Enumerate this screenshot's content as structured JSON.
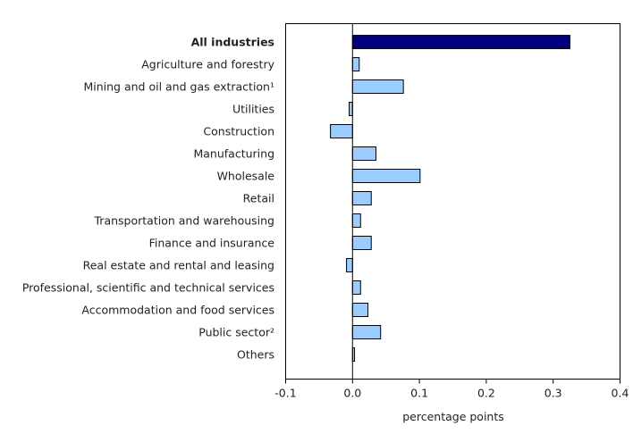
{
  "chart_data": {
    "type": "bar",
    "orientation": "horizontal",
    "title": "",
    "xlabel": "percentage points",
    "ylabel": "",
    "xlim": [
      -0.1,
      0.4
    ],
    "xticks": [
      -0.1,
      0.0,
      0.1,
      0.2,
      0.3,
      0.4
    ],
    "xtick_labels": [
      "-0.1",
      "0.0",
      "0.1",
      "0.2",
      "0.3",
      "0.4"
    ],
    "grid": false,
    "legend": "none",
    "categories": [
      "All industries",
      "Agriculture and forestry",
      "Mining and oil and gas extraction¹",
      "Utilities",
      "Construction",
      "Manufacturing",
      "Wholesale",
      "Retail",
      "Transportation and warehousing",
      "Finance and insurance",
      "Real estate and rental and leasing",
      "Professional, scientific and technical services",
      "Accommodation and food services",
      "Public sector²",
      "Others"
    ],
    "values": [
      0.325,
      0.01,
      0.076,
      -0.005,
      -0.033,
      0.035,
      0.101,
      0.028,
      0.012,
      0.028,
      -0.009,
      0.012,
      0.023,
      0.042,
      0.003
    ],
    "highlight_index": 0,
    "colors": {
      "highlight_fill": "#000080",
      "bar_fill": "#99ccff",
      "bar_stroke": "#000000"
    }
  }
}
